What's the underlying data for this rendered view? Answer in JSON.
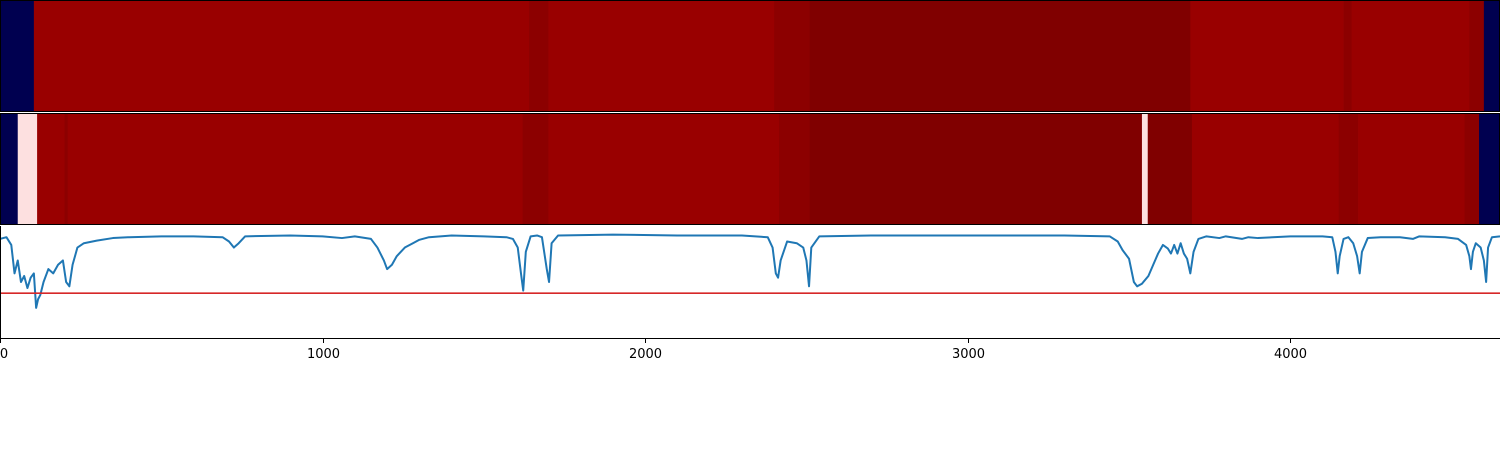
{
  "chart_data": [
    {
      "type": "heatmap",
      "xlim": [
        0,
        4650
      ],
      "colors": {
        "dark_navy": "#000050",
        "red": "#990000",
        "dark_red_1": "#8c0000",
        "dark_red_2": "#800000",
        "pale": "#fde0e0"
      },
      "segments": [
        {
          "x0": 0,
          "x1": 105,
          "color": "#000050"
        },
        {
          "x0": 105,
          "x1": 1640,
          "color": "#990000"
        },
        {
          "x0": 1640,
          "x1": 1700,
          "color": "#8c0000"
        },
        {
          "x0": 1700,
          "x1": 2400,
          "color": "#990000"
        },
        {
          "x0": 2400,
          "x1": 2510,
          "color": "#8c0000"
        },
        {
          "x0": 2510,
          "x1": 3690,
          "color": "#800000"
        },
        {
          "x0": 3690,
          "x1": 4165,
          "color": "#990000"
        },
        {
          "x0": 4165,
          "x1": 4190,
          "color": "#8c0000"
        },
        {
          "x0": 4190,
          "x1": 4555,
          "color": "#990000"
        },
        {
          "x0": 4555,
          "x1": 4600,
          "color": "#8c0000"
        },
        {
          "x0": 4600,
          "x1": 4650,
          "color": "#000050"
        }
      ]
    },
    {
      "type": "heatmap",
      "xlim": [
        0,
        4650
      ],
      "segments": [
        {
          "x0": 0,
          "x1": 55,
          "color": "#000050"
        },
        {
          "x0": 55,
          "x1": 115,
          "color": "#fde0e0"
        },
        {
          "x0": 115,
          "x1": 200,
          "color": "#990000"
        },
        {
          "x0": 200,
          "x1": 210,
          "color": "#8c0000"
        },
        {
          "x0": 210,
          "x1": 1620,
          "color": "#990000"
        },
        {
          "x0": 1620,
          "x1": 1700,
          "color": "#8c0000"
        },
        {
          "x0": 1700,
          "x1": 2415,
          "color": "#990000"
        },
        {
          "x0": 2415,
          "x1": 2510,
          "color": "#8c0000"
        },
        {
          "x0": 2510,
          "x1": 3540,
          "color": "#800000"
        },
        {
          "x0": 3540,
          "x1": 3558,
          "color": "#fde0e0"
        },
        {
          "x0": 3558,
          "x1": 3695,
          "color": "#800000"
        },
        {
          "x0": 3695,
          "x1": 4150,
          "color": "#990000"
        },
        {
          "x0": 4150,
          "x1": 4210,
          "color": "#8c0000"
        },
        {
          "x0": 4210,
          "x1": 4540,
          "color": "#990000"
        },
        {
          "x0": 4540,
          "x1": 4585,
          "color": "#8c0000"
        },
        {
          "x0": 4585,
          "x1": 4650,
          "color": "#000050"
        }
      ]
    },
    {
      "type": "line",
      "xlim": [
        0,
        4650
      ],
      "ylim": [
        -1.2,
        0.1
      ],
      "xticks": [
        0,
        1000,
        2000,
        3000,
        4000
      ],
      "xtick_labels": [
        "0",
        "1000",
        "2000",
        "3000",
        "4000"
      ],
      "series": [
        {
          "color": "#1f77b4",
          "points": [
            [
              0,
              -0.05
            ],
            [
              20,
              -0.03
            ],
            [
              35,
              -0.12
            ],
            [
              45,
              -0.45
            ],
            [
              55,
              -0.3
            ],
            [
              65,
              -0.55
            ],
            [
              75,
              -0.48
            ],
            [
              85,
              -0.62
            ],
            [
              95,
              -0.5
            ],
            [
              105,
              -0.45
            ],
            [
              112,
              -0.85
            ],
            [
              118,
              -0.75
            ],
            [
              125,
              -0.7
            ],
            [
              135,
              -0.55
            ],
            [
              150,
              -0.4
            ],
            [
              165,
              -0.45
            ],
            [
              180,
              -0.35
            ],
            [
              195,
              -0.3
            ],
            [
              205,
              -0.55
            ],
            [
              215,
              -0.6
            ],
            [
              225,
              -0.35
            ],
            [
              240,
              -0.15
            ],
            [
              260,
              -0.1
            ],
            [
              300,
              -0.07
            ],
            [
              350,
              -0.04
            ],
            [
              400,
              -0.03
            ],
            [
              500,
              -0.02
            ],
            [
              600,
              -0.02
            ],
            [
              690,
              -0.03
            ],
            [
              710,
              -0.08
            ],
            [
              725,
              -0.15
            ],
            [
              740,
              -0.1
            ],
            [
              760,
              -0.02
            ],
            [
              900,
              -0.01
            ],
            [
              1000,
              -0.02
            ],
            [
              1060,
              -0.04
            ],
            [
              1100,
              -0.02
            ],
            [
              1150,
              -0.05
            ],
            [
              1170,
              -0.15
            ],
            [
              1190,
              -0.3
            ],
            [
              1200,
              -0.4
            ],
            [
              1215,
              -0.35
            ],
            [
              1230,
              -0.25
            ],
            [
              1255,
              -0.15
            ],
            [
              1280,
              -0.1
            ],
            [
              1300,
              -0.06
            ],
            [
              1330,
              -0.03
            ],
            [
              1400,
              -0.01
            ],
            [
              1500,
              -0.02
            ],
            [
              1570,
              -0.03
            ],
            [
              1590,
              -0.05
            ],
            [
              1605,
              -0.15
            ],
            [
              1615,
              -0.45
            ],
            [
              1622,
              -0.65
            ],
            [
              1630,
              -0.2
            ],
            [
              1645,
              -0.02
            ],
            [
              1665,
              -0.01
            ],
            [
              1680,
              -0.03
            ],
            [
              1695,
              -0.4
            ],
            [
              1702,
              -0.55
            ],
            [
              1710,
              -0.1
            ],
            [
              1730,
              -0.01
            ],
            [
              1900,
              0.0
            ],
            [
              2100,
              -0.01
            ],
            [
              2300,
              -0.01
            ],
            [
              2380,
              -0.03
            ],
            [
              2395,
              -0.15
            ],
            [
              2405,
              -0.45
            ],
            [
              2412,
              -0.5
            ],
            [
              2420,
              -0.3
            ],
            [
              2440,
              -0.08
            ],
            [
              2470,
              -0.1
            ],
            [
              2490,
              -0.15
            ],
            [
              2500,
              -0.3
            ],
            [
              2508,
              -0.6
            ],
            [
              2515,
              -0.15
            ],
            [
              2540,
              -0.02
            ],
            [
              2700,
              -0.01
            ],
            [
              3000,
              -0.01
            ],
            [
              3300,
              -0.01
            ],
            [
              3440,
              -0.02
            ],
            [
              3465,
              -0.08
            ],
            [
              3480,
              -0.18
            ],
            [
              3500,
              -0.28
            ],
            [
              3515,
              -0.55
            ],
            [
              3525,
              -0.6
            ],
            [
              3540,
              -0.57
            ],
            [
              3560,
              -0.48
            ],
            [
              3575,
              -0.35
            ],
            [
              3590,
              -0.22
            ],
            [
              3605,
              -0.12
            ],
            [
              3620,
              -0.16
            ],
            [
              3630,
              -0.22
            ],
            [
              3640,
              -0.12
            ],
            [
              3650,
              -0.22
            ],
            [
              3660,
              -0.1
            ],
            [
              3670,
              -0.22
            ],
            [
              3680,
              -0.28
            ],
            [
              3690,
              -0.45
            ],
            [
              3700,
              -0.2
            ],
            [
              3715,
              -0.05
            ],
            [
              3740,
              -0.02
            ],
            [
              3780,
              -0.04
            ],
            [
              3800,
              -0.02
            ],
            [
              3850,
              -0.05
            ],
            [
              3870,
              -0.03
            ],
            [
              3900,
              -0.04
            ],
            [
              4000,
              -0.02
            ],
            [
              4100,
              -0.02
            ],
            [
              4130,
              -0.03
            ],
            [
              4140,
              -0.2
            ],
            [
              4147,
              -0.45
            ],
            [
              4153,
              -0.25
            ],
            [
              4165,
              -0.05
            ],
            [
              4180,
              -0.03
            ],
            [
              4195,
              -0.1
            ],
            [
              4207,
              -0.25
            ],
            [
              4215,
              -0.45
            ],
            [
              4222,
              -0.2
            ],
            [
              4240,
              -0.04
            ],
            [
              4280,
              -0.03
            ],
            [
              4340,
              -0.03
            ],
            [
              4380,
              -0.05
            ],
            [
              4400,
              -0.02
            ],
            [
              4480,
              -0.03
            ],
            [
              4520,
              -0.05
            ],
            [
              4545,
              -0.12
            ],
            [
              4555,
              -0.25
            ],
            [
              4560,
              -0.4
            ],
            [
              4566,
              -0.2
            ],
            [
              4575,
              -0.1
            ],
            [
              4590,
              -0.15
            ],
            [
              4600,
              -0.3
            ],
            [
              4607,
              -0.55
            ],
            [
              4613,
              -0.15
            ],
            [
              4625,
              -0.03
            ],
            [
              4650,
              -0.02
            ]
          ]
        },
        {
          "color": "#d62728",
          "points": [
            [
              0,
              -0.68
            ],
            [
              4650,
              -0.68
            ]
          ]
        }
      ]
    }
  ]
}
